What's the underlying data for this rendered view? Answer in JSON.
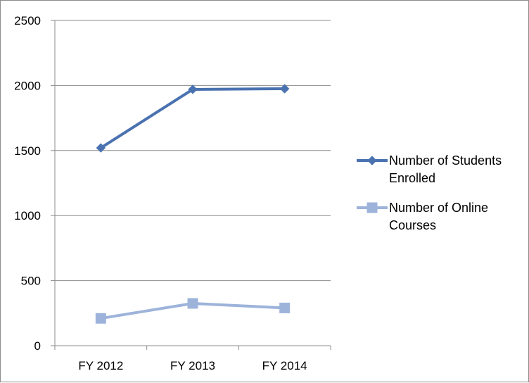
{
  "chart_data": {
    "type": "line",
    "categories": [
      "FY 2012",
      "FY 2013",
      "FY 2014"
    ],
    "ylim": [
      0,
      2500
    ],
    "yticks": [
      0,
      500,
      1000,
      1500,
      2000,
      2500
    ],
    "grid": true,
    "legend": "right",
    "series": [
      {
        "name": "Number of Students Enrolled",
        "name_lines": [
          "Number of Students",
          "Enrolled"
        ],
        "values": [
          1520,
          1970,
          1975
        ],
        "color": "#4a72b0",
        "marker": "diamond"
      },
      {
        "name": "Number of Online Courses",
        "name_lines": [
          "Number of Online",
          "Courses"
        ],
        "values": [
          210,
          325,
          290
        ],
        "color": "#9db3da",
        "marker": "square"
      }
    ]
  }
}
